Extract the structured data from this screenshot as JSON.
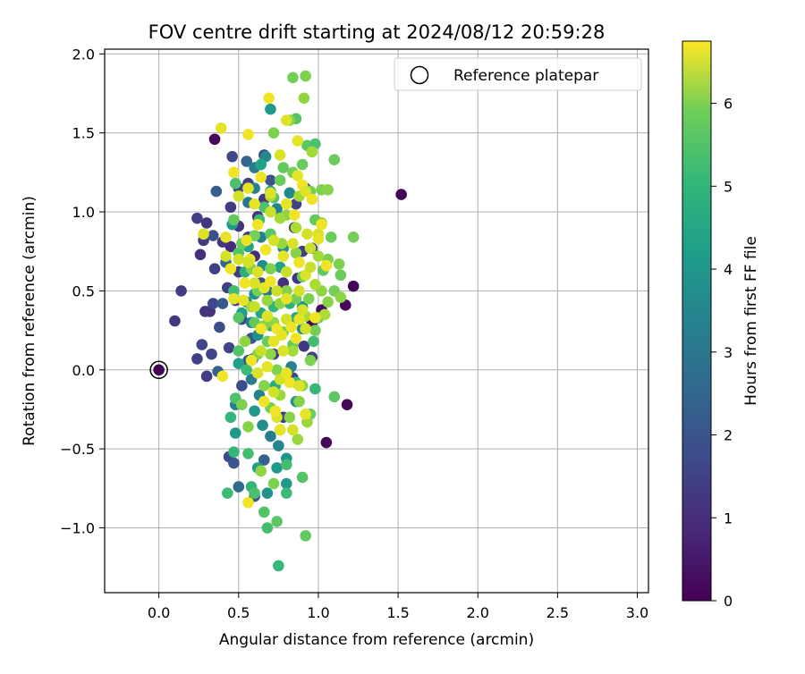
{
  "chart_data": {
    "type": "scatter",
    "title": "FOV centre drift starting at 2024/08/12 20:59:28",
    "xlabel": "Angular distance from reference (arcmin)",
    "ylabel": "Rotation from reference (arcmin)",
    "xlim": [
      -0.34,
      3.07
    ],
    "ylim": [
      -1.41,
      2.03
    ],
    "xticks": [
      0.0,
      0.5,
      1.0,
      1.5,
      2.0,
      2.5,
      3.0
    ],
    "xtick_labels": [
      "0.0",
      "0.5",
      "1.0",
      "1.5",
      "2.0",
      "2.5",
      "3.0"
    ],
    "yticks": [
      -1.0,
      -0.5,
      0.0,
      0.5,
      1.0,
      1.5,
      2.0
    ],
    "ytick_labels": [
      "−1.0",
      "−0.5",
      "0.0",
      "0.5",
      "1.0",
      "1.5",
      "2.0"
    ],
    "grid": true,
    "legend": {
      "placement": "top-right",
      "entries": [
        "Reference platepar"
      ]
    },
    "reference_point": {
      "x": 0.0,
      "y": 0.0,
      "label": "Reference platepar"
    },
    "colorbar": {
      "label": "Hours from first FF file",
      "range": [
        0,
        6.75
      ],
      "ticks": [
        0,
        1,
        2,
        3,
        4,
        5,
        6
      ],
      "tick_labels": [
        "0",
        "1",
        "2",
        "3",
        "4",
        "5",
        "6"
      ],
      "colormap": "viridis"
    },
    "points": [
      [
        0.0,
        0.0,
        0.0
      ],
      [
        1.52,
        1.11,
        0.05
      ],
      [
        0.35,
        1.46,
        0.15
      ],
      [
        1.18,
        -0.22,
        0.1
      ],
      [
        1.05,
        -0.46,
        0.15
      ],
      [
        1.22,
        0.53,
        0.1
      ],
      [
        1.17,
        0.41,
        0.15
      ],
      [
        0.96,
        0.3,
        0.2
      ],
      [
        1.02,
        0.38,
        0.25
      ],
      [
        0.1,
        0.31,
        1.1
      ],
      [
        0.14,
        0.5,
        1.2
      ],
      [
        0.24,
        0.07,
        1.3
      ],
      [
        0.27,
        0.16,
        1.4
      ],
      [
        0.24,
        0.96,
        1.3
      ],
      [
        0.28,
        0.82,
        1.2
      ],
      [
        0.3,
        0.93,
        1.1
      ],
      [
        0.32,
        0.37,
        1.0
      ],
      [
        0.35,
        0.64,
        1.3
      ],
      [
        0.34,
        0.42,
        1.5
      ],
      [
        0.29,
        0.37,
        1.0
      ],
      [
        0.3,
        -0.04,
        1.2
      ],
      [
        0.33,
        0.1,
        1.4
      ],
      [
        0.26,
        0.73,
        0.9
      ],
      [
        0.45,
        0.78,
        0.8
      ],
      [
        0.5,
        0.91,
        1.0
      ],
      [
        0.4,
        0.81,
        1.1
      ],
      [
        0.43,
        0.52,
        1.3
      ],
      [
        0.5,
        0.62,
        1.2
      ],
      [
        0.56,
        0.84,
        1.1
      ],
      [
        0.44,
        0.14,
        1.4
      ],
      [
        0.48,
        0.44,
        1.2
      ],
      [
        0.52,
        0.32,
        1.5
      ],
      [
        0.6,
        0.72,
        0.9
      ],
      [
        0.62,
        0.97,
        1.0
      ],
      [
        0.66,
        1.08,
        1.1
      ],
      [
        0.46,
        1.35,
        1.5
      ],
      [
        0.45,
        1.03,
        1.2
      ],
      [
        0.5,
        1.15,
        1.4
      ],
      [
        0.56,
        1.18,
        1.3
      ],
      [
        0.66,
        1.36,
        1.6
      ],
      [
        0.36,
        1.13,
        2.0
      ],
      [
        0.55,
        1.32,
        2.2
      ],
      [
        0.7,
        1.2,
        1.8
      ],
      [
        0.44,
        -0.55,
        1.5
      ],
      [
        0.47,
        -0.59,
        1.8
      ],
      [
        0.5,
        -0.74,
        2.3
      ],
      [
        0.6,
        -0.8,
        1.9
      ],
      [
        0.52,
        -0.1,
        1.6
      ],
      [
        0.56,
        0.06,
        1.9
      ],
      [
        0.66,
        -0.57,
        2.1
      ],
      [
        0.78,
        -0.3,
        1.3
      ],
      [
        0.72,
        0.1,
        1.2
      ],
      [
        0.78,
        0.55,
        0.9
      ],
      [
        0.87,
        0.58,
        1.0
      ],
      [
        0.9,
        0.75,
        1.2
      ],
      [
        0.85,
        0.9,
        1.1
      ],
      [
        0.86,
        1.05,
        1.3
      ],
      [
        0.96,
        0.77,
        1.4
      ],
      [
        0.92,
        1.15,
        1.7
      ],
      [
        0.91,
        0.15,
        1.1
      ],
      [
        0.96,
        0.08,
        1.3
      ],
      [
        0.84,
        -0.05,
        1.6
      ],
      [
        0.58,
        0.2,
        1.8
      ],
      [
        0.64,
        0.55,
        1.5
      ],
      [
        0.38,
        0.27,
        1.6
      ],
      [
        0.4,
        0.42,
        1.9
      ],
      [
        0.37,
        -0.01,
        2.1
      ],
      [
        0.42,
        0.68,
        2.3
      ],
      [
        0.34,
        0.85,
        1.7
      ],
      [
        0.7,
        1.65,
        3.6
      ],
      [
        0.67,
        1.35,
        3.2
      ],
      [
        0.6,
        1.28,
        2.8
      ],
      [
        0.6,
        1.15,
        3.0
      ],
      [
        0.56,
        1.06,
        2.7
      ],
      [
        0.64,
        0.84,
        2.9
      ],
      [
        0.65,
        0.66,
        3.3
      ],
      [
        0.68,
        0.5,
        2.6
      ],
      [
        0.6,
        0.48,
        3.5
      ],
      [
        0.55,
        0.43,
        3.1
      ],
      [
        0.58,
        0.3,
        2.9
      ],
      [
        0.62,
        0.22,
        3.4
      ],
      [
        0.59,
        0.07,
        3.2
      ],
      [
        0.58,
        -0.06,
        2.8
      ],
      [
        0.63,
        -0.16,
        3.0
      ],
      [
        0.6,
        -0.26,
        3.6
      ],
      [
        0.65,
        -0.35,
        3.3
      ],
      [
        0.7,
        -0.42,
        2.9
      ],
      [
        0.75,
        -0.48,
        3.1
      ],
      [
        0.8,
        -0.56,
        3.5
      ],
      [
        0.86,
        -0.2,
        3.4
      ],
      [
        0.83,
        0.02,
        3.0
      ],
      [
        0.9,
        0.26,
        3.2
      ],
      [
        0.9,
        0.4,
        3.6
      ],
      [
        0.78,
        0.77,
        3.3
      ],
      [
        0.74,
        1.02,
        2.9
      ],
      [
        0.82,
        1.12,
        3.2
      ],
      [
        0.48,
        -0.4,
        3.6
      ],
      [
        0.48,
        -0.22,
        3.0
      ],
      [
        0.5,
        0.04,
        3.8
      ],
      [
        0.52,
        0.36,
        3.8
      ],
      [
        0.56,
        0.78,
        3.9
      ],
      [
        0.46,
        0.92,
        3.7
      ],
      [
        0.64,
        1.3,
        3.9
      ],
      [
        0.7,
        1.13,
        3.6
      ],
      [
        0.68,
        -0.78,
        3.4
      ],
      [
        0.62,
        -0.62,
        3.8
      ],
      [
        0.74,
        -0.62,
        3.7
      ],
      [
        0.8,
        -0.72,
        3.6
      ],
      [
        0.86,
        0.33,
        4.0
      ],
      [
        0.73,
        -0.1,
        4.1
      ],
      [
        0.7,
        0.28,
        4.2
      ],
      [
        0.54,
        0.62,
        4.2
      ],
      [
        0.76,
        0.65,
        3.9
      ],
      [
        0.64,
        0.36,
        4.0
      ],
      [
        0.82,
        0.42,
        4.3
      ],
      [
        0.72,
        0.4,
        4.4
      ],
      [
        0.45,
        -0.3,
        4.4
      ],
      [
        0.43,
        -0.78,
        4.6
      ],
      [
        0.47,
        -0.52,
        4.5
      ],
      [
        0.56,
        -0.53,
        4.7
      ],
      [
        0.58,
        -0.74,
        4.4
      ],
      [
        0.6,
        -0.78,
        4.8
      ],
      [
        0.66,
        -0.9,
        4.9
      ],
      [
        0.68,
        -1.0,
        4.7
      ],
      [
        0.74,
        -0.96,
        5.0
      ],
      [
        0.75,
        -1.24,
        4.5
      ],
      [
        0.8,
        -0.78,
        4.6
      ],
      [
        0.8,
        -0.6,
        4.7
      ],
      [
        0.76,
        -0.38,
        4.5
      ],
      [
        0.9,
        -0.68,
        4.9
      ],
      [
        0.92,
        -1.05,
        5.1
      ],
      [
        0.86,
        -0.08,
        4.6
      ],
      [
        0.98,
        -0.12,
        4.5
      ],
      [
        1.1,
        -0.17,
        5.0
      ],
      [
        0.95,
        -0.28,
        5.2
      ],
      [
        0.97,
        0.18,
        4.7
      ],
      [
        0.48,
        -0.18,
        4.8
      ],
      [
        0.55,
        0.0,
        4.6
      ],
      [
        0.5,
        0.12,
        4.9
      ],
      [
        0.5,
        0.33,
        5.0
      ],
      [
        0.47,
        0.5,
        4.7
      ],
      [
        0.5,
        0.74,
        4.9
      ],
      [
        0.47,
        0.95,
        5.1
      ],
      [
        0.48,
        1.18,
        4.8
      ],
      [
        0.52,
        0.8,
        5.2
      ],
      [
        0.63,
        0.95,
        4.6
      ],
      [
        0.66,
        1.03,
        4.8
      ],
      [
        0.7,
        0.86,
        5.0
      ],
      [
        0.72,
        1.09,
        4.9
      ],
      [
        0.76,
        1.2,
        5.2
      ],
      [
        0.78,
        1.28,
        5.1
      ],
      [
        0.84,
        1.25,
        5.3
      ],
      [
        0.9,
        1.3,
        5.2
      ],
      [
        0.93,
        1.42,
        5.0
      ],
      [
        0.98,
        1.43,
        4.8
      ],
      [
        0.86,
        1.59,
        4.9
      ],
      [
        0.84,
        1.85,
        5.3
      ],
      [
        0.92,
        1.86,
        5.4
      ],
      [
        0.91,
        1.72,
        5.6
      ],
      [
        0.82,
        1.58,
        5.5
      ],
      [
        0.72,
        1.5,
        5.4
      ],
      [
        1.1,
        1.33,
        5.2
      ],
      [
        0.95,
        1.13,
        5.3
      ],
      [
        1.02,
        1.14,
        5.4
      ],
      [
        1.06,
        1.14,
        5.5
      ],
      [
        0.98,
        0.95,
        5.1
      ],
      [
        1.02,
        0.93,
        5.5
      ],
      [
        1.08,
        0.84,
        5.2
      ],
      [
        1.22,
        0.84,
        5.3
      ],
      [
        1.13,
        0.67,
        5.4
      ],
      [
        1.14,
        0.6,
        5.2
      ],
      [
        1.1,
        0.5,
        5.3
      ],
      [
        1.14,
        0.46,
        5.6
      ],
      [
        1.06,
        0.43,
        5.5
      ],
      [
        1.03,
        0.63,
        5.1
      ],
      [
        1.06,
        0.7,
        5.4
      ],
      [
        1.02,
        0.5,
        5.6
      ],
      [
        1.0,
        0.33,
        5.2
      ],
      [
        0.98,
        0.25,
        5.3
      ],
      [
        0.95,
        0.06,
        5.4
      ],
      [
        0.9,
        -0.1,
        5.6
      ],
      [
        0.93,
        -0.33,
        5.7
      ],
      [
        0.88,
        -0.2,
        5.5
      ],
      [
        0.84,
        0.16,
        5.1
      ],
      [
        0.78,
        0.24,
        5.3
      ],
      [
        0.72,
        0.3,
        5.6
      ],
      [
        0.68,
        0.18,
        5.2
      ],
      [
        0.62,
        0.1,
        5.4
      ],
      [
        0.6,
        0.3,
        5.1
      ],
      [
        0.62,
        0.5,
        5.3
      ],
      [
        0.58,
        0.64,
        5.5
      ],
      [
        0.6,
        0.85,
        5.3
      ],
      [
        0.7,
        0.64,
        5.4
      ],
      [
        0.77,
        0.8,
        5.7
      ],
      [
        0.8,
        0.98,
        5.6
      ],
      [
        0.86,
        0.74,
        5.5
      ],
      [
        0.9,
        0.59,
        5.2
      ],
      [
        0.94,
        0.45,
        5.4
      ],
      [
        0.86,
        0.45,
        5.3
      ],
      [
        0.8,
        0.5,
        5.5
      ],
      [
        0.76,
        0.42,
        5.6
      ],
      [
        0.68,
        0.44,
        5.7
      ],
      [
        0.66,
        0.28,
        5.5
      ],
      [
        0.7,
        0.1,
        5.6
      ],
      [
        0.74,
        0.0,
        5.4
      ],
      [
        0.66,
        -0.1,
        5.5
      ],
      [
        0.7,
        -0.24,
        5.3
      ],
      [
        0.76,
        -0.16,
        5.7
      ],
      [
        0.82,
        -0.3,
        5.5
      ],
      [
        0.87,
        -0.44,
        5.7
      ],
      [
        0.64,
        -0.64,
        5.6
      ],
      [
        0.72,
        -0.72,
        5.4
      ],
      [
        0.56,
        -0.36,
        5.5
      ],
      [
        0.52,
        -0.22,
        5.4
      ],
      [
        0.54,
        0.18,
        5.6
      ],
      [
        0.58,
        0.4,
        5.7
      ],
      [
        0.76,
        0.96,
        5.8
      ],
      [
        0.7,
        1.1,
        5.9
      ],
      [
        0.86,
        0.9,
        5.9
      ],
      [
        0.88,
        1.1,
        5.8
      ],
      [
        0.96,
        1.38,
        5.8
      ],
      [
        0.84,
        0.12,
        5.8
      ],
      [
        0.92,
        0.34,
        5.9
      ],
      [
        1.0,
        0.72,
        5.8
      ],
      [
        1.04,
        0.35,
        5.9
      ],
      [
        0.98,
        0.54,
        5.9
      ],
      [
        0.39,
        1.53,
        6.5
      ],
      [
        0.69,
        1.72,
        6.6
      ],
      [
        0.8,
        1.58,
        6.4
      ],
      [
        0.56,
        1.49,
        6.6
      ],
      [
        0.87,
        1.45,
        6.5
      ],
      [
        0.76,
        1.36,
        6.4
      ],
      [
        0.47,
        1.25,
        6.6
      ],
      [
        0.56,
        1.15,
        6.5
      ],
      [
        0.64,
        1.22,
        6.6
      ],
      [
        0.7,
        1.12,
        6.4
      ],
      [
        0.87,
        1.23,
        6.5
      ],
      [
        0.9,
        1.17,
        6.6
      ],
      [
        0.92,
        1.13,
        6.4
      ],
      [
        0.5,
        1.1,
        6.3
      ],
      [
        0.6,
        1.05,
        6.5
      ],
      [
        0.7,
        1.0,
        6.2
      ],
      [
        0.8,
        1.05,
        6.5
      ],
      [
        0.85,
        0.98,
        6.6
      ],
      [
        0.93,
        0.86,
        6.3
      ],
      [
        1.0,
        0.86,
        6.4
      ],
      [
        1.02,
        0.92,
        6.6
      ],
      [
        0.95,
        0.77,
        6.2
      ],
      [
        0.62,
        0.92,
        6.6
      ],
      [
        0.55,
        0.82,
        6.5
      ],
      [
        0.5,
        0.7,
        6.3
      ],
      [
        0.57,
        0.7,
        6.6
      ],
      [
        0.62,
        0.62,
        6.4
      ],
      [
        0.67,
        0.76,
        6.6
      ],
      [
        0.72,
        0.82,
        6.3
      ],
      [
        0.78,
        0.72,
        6.5
      ],
      [
        0.8,
        0.62,
        6.2
      ],
      [
        0.84,
        0.8,
        6.4
      ],
      [
        0.88,
        0.68,
        6.6
      ],
      [
        0.92,
        0.6,
        6.4
      ],
      [
        0.95,
        0.65,
        6.2
      ],
      [
        0.88,
        0.5,
        6.3
      ],
      [
        0.8,
        0.45,
        6.5
      ],
      [
        0.74,
        0.5,
        6.2
      ],
      [
        0.66,
        0.52,
        6.5
      ],
      [
        0.6,
        0.55,
        6.4
      ],
      [
        0.54,
        0.55,
        6.6
      ],
      [
        0.53,
        0.44,
        6.5
      ],
      [
        0.6,
        0.4,
        6.2
      ],
      [
        0.68,
        0.34,
        6.4
      ],
      [
        0.74,
        0.26,
        6.6
      ],
      [
        0.8,
        0.32,
        6.3
      ],
      [
        0.88,
        0.32,
        6.5
      ],
      [
        0.92,
        0.26,
        6.3
      ],
      [
        0.86,
        0.2,
        6.6
      ],
      [
        0.78,
        0.12,
        6.4
      ],
      [
        0.72,
        0.18,
        6.5
      ],
      [
        0.64,
        0.12,
        6.2
      ],
      [
        0.58,
        0.06,
        6.6
      ],
      [
        0.62,
        -0.02,
        6.4
      ],
      [
        0.68,
        0.02,
        6.5
      ],
      [
        0.76,
        -0.06,
        6.3
      ],
      [
        0.82,
        -0.08,
        6.6
      ],
      [
        0.88,
        -0.1,
        6.4
      ],
      [
        0.8,
        -0.02,
        6.5
      ],
      [
        0.72,
        -0.14,
        6.3
      ],
      [
        0.66,
        -0.2,
        6.6
      ],
      [
        0.74,
        -0.3,
        6.4
      ],
      [
        0.76,
        -0.38,
        6.5
      ],
      [
        0.84,
        -0.38,
        6.3
      ],
      [
        0.73,
        -0.26,
        6.6
      ],
      [
        0.56,
        -0.84,
        6.6
      ],
      [
        0.92,
        -0.28,
        6.5
      ],
      [
        0.4,
        -0.04,
        6.6
      ],
      [
        0.28,
        0.86,
        6.4
      ],
      [
        0.42,
        0.84,
        6.5
      ],
      [
        0.45,
        0.64,
        6.6
      ],
      [
        0.42,
        0.72,
        6.3
      ],
      [
        0.47,
        0.45,
        6.5
      ],
      [
        0.98,
        0.33,
        6.6
      ],
      [
        1.0,
        0.83,
        6.5
      ],
      [
        1.05,
        0.66,
        6.6
      ],
      [
        0.96,
        1.08,
        6.6
      ],
      [
        0.9,
        0.38,
        6.3
      ],
      [
        0.83,
        0.27,
        6.6
      ],
      [
        0.77,
        0.22,
        6.5
      ],
      [
        0.64,
        0.26,
        6.6
      ],
      [
        0.56,
        0.68,
        6.3
      ],
      [
        0.7,
        0.56,
        6.6
      ]
    ]
  }
}
